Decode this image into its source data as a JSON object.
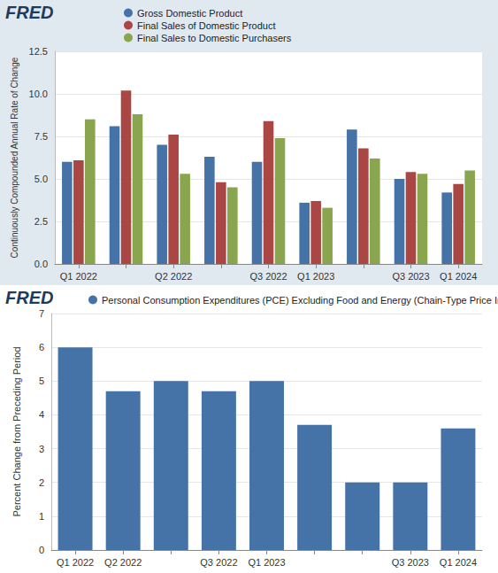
{
  "chart_data": [
    {
      "type": "bar",
      "logo": "FRED",
      "y_label": "Continuously Compounded Annual Rate of Change",
      "categories": [
        "Q1 2022",
        null,
        "Q2 2022",
        null,
        "Q3 2022",
        "Q1 2023",
        null,
        "Q3 2023",
        "Q1 2024"
      ],
      "series": [
        {
          "name": "Gross Domestic Product",
          "color": "#4572a7",
          "values": [
            6.0,
            8.1,
            7.0,
            6.3,
            6.0,
            3.6,
            7.9,
            5.0,
            4.2
          ]
        },
        {
          "name": "Final Sales of Domestic Product",
          "color": "#aa4643",
          "values": [
            6.1,
            10.2,
            7.6,
            4.8,
            8.4,
            3.7,
            6.8,
            5.4,
            4.7
          ]
        },
        {
          "name": "Final Sales to Domestic Purchasers",
          "color": "#89a54e",
          "values": [
            8.5,
            8.8,
            5.3,
            4.5,
            7.4,
            3.3,
            6.2,
            5.3,
            5.5
          ]
        }
      ],
      "ylim": [
        0,
        12.5
      ],
      "yticks": [
        {
          "value": 0,
          "label": "0.0"
        },
        2.5,
        {
          "value": 5,
          "label": "5.0"
        },
        7.5,
        {
          "value": 10,
          "label": "10.0"
        },
        12.5
      ],
      "grid": true,
      "legend": "top-left"
    },
    {
      "type": "bar",
      "logo": "FRED",
      "y_label": "Percent Change from Preceding Period",
      "categories": [
        "Q1 2022",
        "Q2 2022",
        null,
        "Q3 2022",
        "Q1 2023",
        null,
        null,
        "Q3 2023",
        "Q1 2024"
      ],
      "series": [
        {
          "name": "Personal Consumption Expenditures (PCE) Excluding Food and Energy (Chain-Type Price Index)",
          "color": "#4572a7",
          "values": [
            6.0,
            4.7,
            5.0,
            4.7,
            5.0,
            3.7,
            2.0,
            2.0,
            3.6
          ]
        }
      ],
      "ylim": [
        0,
        7
      ],
      "yticks": [
        0,
        1,
        2,
        3,
        4,
        5,
        6,
        7
      ],
      "grid": true,
      "legend": "top-left"
    }
  ]
}
